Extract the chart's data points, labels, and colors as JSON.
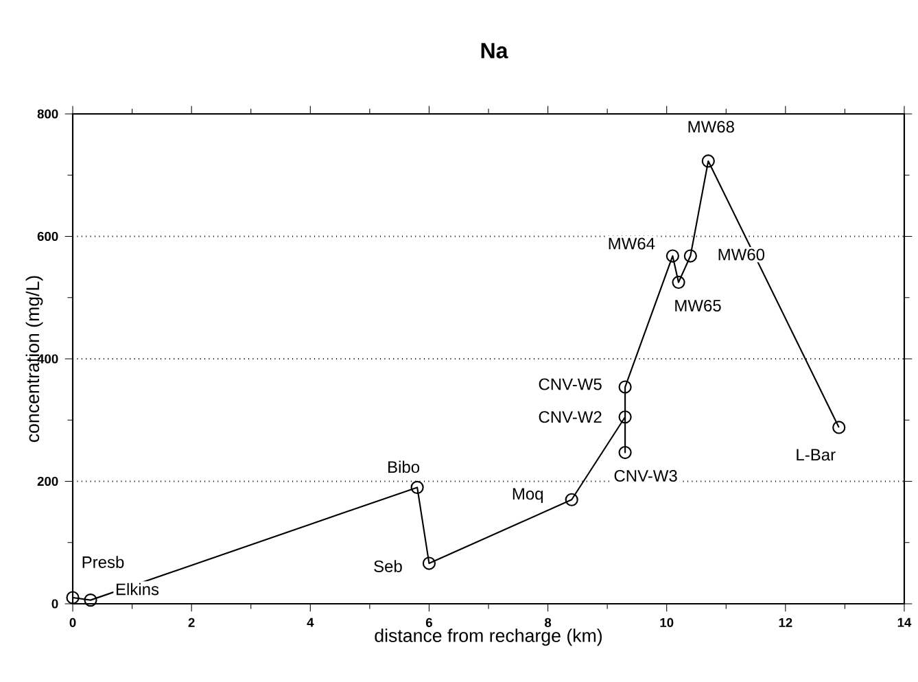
{
  "chart_data": {
    "type": "line",
    "title": "Na",
    "xlabel": "distance from recharge (km)",
    "ylabel": "concentration (mg/L)",
    "x": [
      0,
      0.3,
      5.8,
      6.0,
      8.4,
      9.3,
      9.3,
      9.3,
      10.1,
      10.2,
      10.4,
      10.7,
      12.9
    ],
    "values": [
      10,
      6,
      190,
      66,
      170,
      305,
      247,
      354,
      568,
      525,
      568,
      723,
      288
    ],
    "color": "#000000",
    "marker": "circle",
    "line_style": "solid",
    "xlim": [
      0,
      14
    ],
    "ylim": [
      0,
      800
    ],
    "xticks": [
      0,
      2,
      4,
      6,
      8,
      10,
      12,
      14
    ],
    "yticks": [
      0,
      200,
      400,
      600,
      800
    ],
    "grid": "y",
    "annotations": [
      {
        "text": "Presb",
        "x": 0,
        "y": 10
      },
      {
        "text": "Elkins",
        "x": 0.3,
        "y": 6
      },
      {
        "text": "Bibo",
        "x": 5.8,
        "y": 190
      },
      {
        "text": "Seb",
        "x": 6.0,
        "y": 66
      },
      {
        "text": "Moq",
        "x": 8.4,
        "y": 170
      },
      {
        "text": "CNV-W2",
        "x": 9.3,
        "y": 305
      },
      {
        "text": "CNV-W3",
        "x": 9.3,
        "y": 247
      },
      {
        "text": "CNV-W5",
        "x": 9.3,
        "y": 354
      },
      {
        "text": "MW64",
        "x": 10.1,
        "y": 568
      },
      {
        "text": "MW65",
        "x": 10.2,
        "y": 525
      },
      {
        "text": "MW60",
        "x": 10.4,
        "y": 568
      },
      {
        "text": "MW68",
        "x": 10.7,
        "y": 723
      },
      {
        "text": "L-Bar",
        "x": 12.9,
        "y": 288
      }
    ]
  }
}
